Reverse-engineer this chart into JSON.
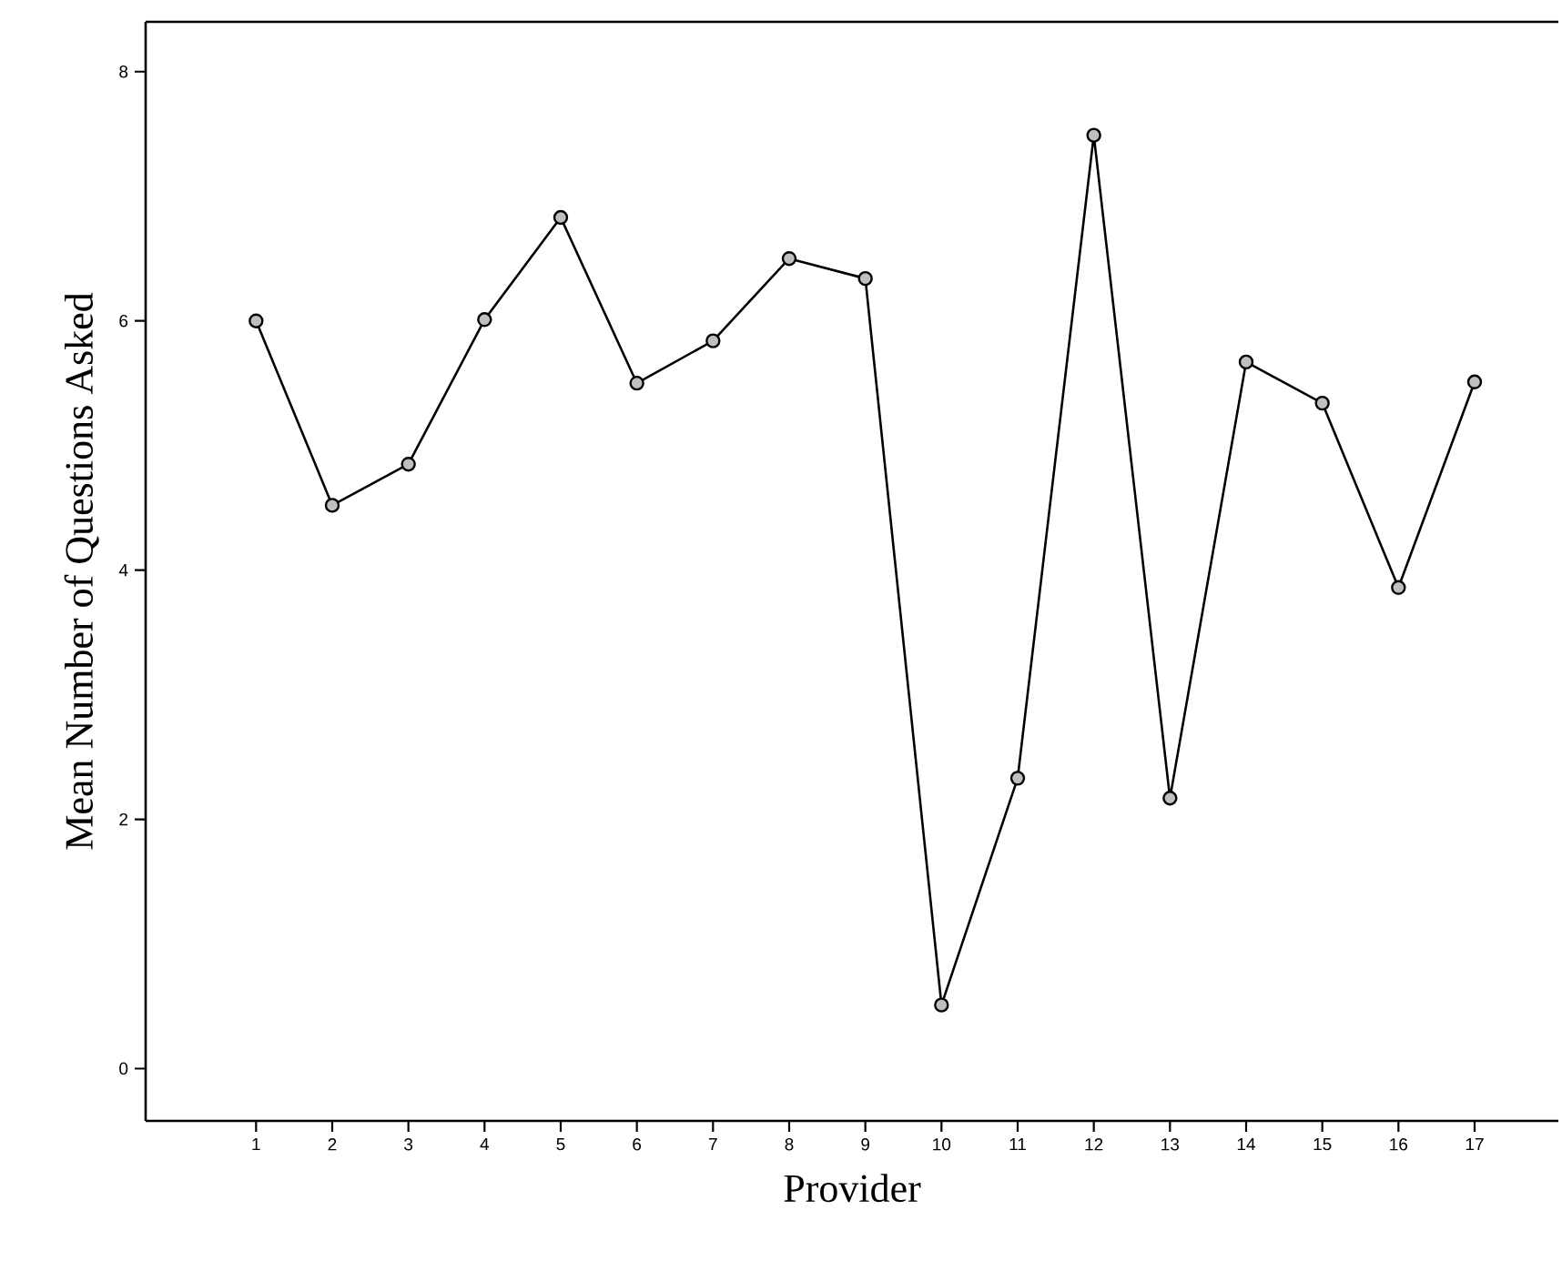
{
  "chart_data": {
    "type": "line",
    "xlabel": "Provider",
    "ylabel": "Mean Number of Questions Asked",
    "x": [
      1,
      2,
      3,
      4,
      5,
      6,
      7,
      8,
      9,
      10,
      11,
      12,
      13,
      14,
      15,
      16,
      17
    ],
    "values": [
      6.0,
      4.52,
      4.85,
      6.01,
      6.83,
      5.5,
      5.84,
      6.5,
      6.34,
      0.51,
      2.33,
      7.49,
      2.17,
      5.67,
      5.34,
      3.86,
      5.51
    ],
    "color": "#000000",
    "marker": "circle",
    "line_style": "solid",
    "grid": false,
    "xlim": [
      -0.45,
      18.1
    ],
    "xticks": [
      1,
      2,
      3,
      4,
      5,
      6,
      7,
      8,
      9,
      10,
      11,
      12,
      13,
      14,
      15,
      16,
      17
    ],
    "ylim": [
      -0.42,
      8.4
    ],
    "yticks": [
      0,
      2,
      4,
      6,
      8
    ]
  }
}
